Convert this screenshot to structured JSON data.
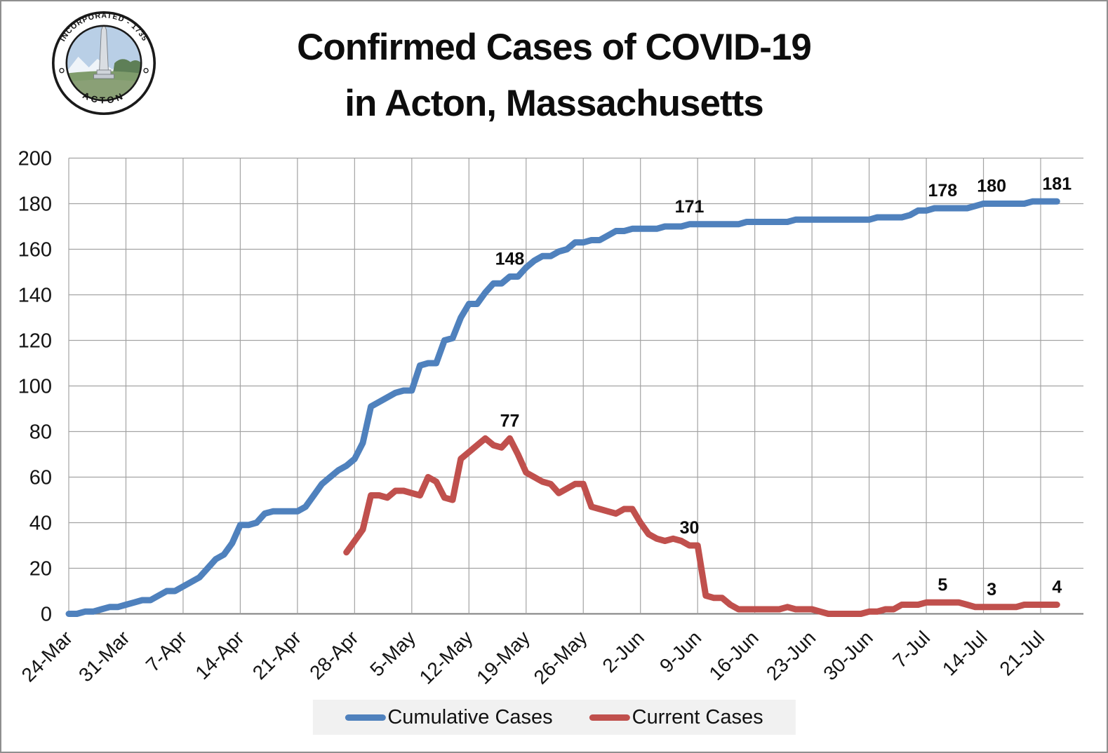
{
  "page": {
    "title_line1": "Confirmed Cases of COVID-19",
    "title_line2": "in Acton, Massachusetts"
  },
  "seal": {
    "top_text": "INCORPORATED - 1735",
    "bottom_text": "ACTON"
  },
  "legend": {
    "items": [
      {
        "label": "Cumulative Cases",
        "color": "#4F81BD"
      },
      {
        "label": "Current Cases",
        "color": "#C0504D"
      }
    ]
  },
  "chart_data": {
    "type": "line",
    "title": "Confirmed Cases of COVID-19 in Acton, Massachusetts",
    "xlabel": "",
    "ylabel": "",
    "ylim": [
      0,
      200
    ],
    "y_ticks": [
      0,
      20,
      40,
      60,
      80,
      100,
      120,
      140,
      160,
      180,
      200
    ],
    "x_tick_labels": [
      "24-Mar",
      "31-Mar",
      "7-Apr",
      "14-Apr",
      "21-Apr",
      "28-Apr",
      "5-May",
      "12-May",
      "19-May",
      "26-May",
      "2-Jun",
      "9-Jun",
      "16-Jun",
      "23-Jun",
      "30-Jun",
      "7-Jul",
      "14-Jul",
      "21-Jul"
    ],
    "x_tick_interval_days": 7,
    "grid": true,
    "legend_position": "bottom",
    "series": [
      {
        "name": "Cumulative Cases",
        "color": "#4F81BD",
        "start_day_offset": 0,
        "values": [
          0,
          0,
          1,
          1,
          2,
          3,
          3,
          4,
          5,
          6,
          6,
          8,
          10,
          10,
          12,
          14,
          16,
          20,
          24,
          26,
          31,
          39,
          39,
          40,
          44,
          45,
          45,
          45,
          45,
          47,
          52,
          57,
          60,
          63,
          65,
          68,
          75,
          91,
          93,
          95,
          97,
          98,
          98,
          109,
          110,
          110,
          120,
          121,
          130,
          136,
          136,
          141,
          145,
          145,
          148,
          148,
          152,
          155,
          157,
          157,
          159,
          160,
          163,
          163,
          164,
          164,
          166,
          168,
          168,
          169,
          169,
          169,
          169,
          170,
          170,
          170,
          171,
          171,
          171,
          171,
          171,
          171,
          171,
          172,
          172,
          172,
          172,
          172,
          172,
          173,
          173,
          173,
          173,
          173,
          173,
          173,
          173,
          173,
          173,
          174,
          174,
          174,
          174,
          175,
          177,
          177,
          178,
          178,
          178,
          178,
          178,
          179,
          180,
          180,
          180,
          180,
          180,
          180,
          181,
          181,
          181,
          181
        ]
      },
      {
        "name": "Current Cases",
        "color": "#C0504D",
        "start_day_offset": 34,
        "values": [
          27,
          32,
          37,
          52,
          52,
          51,
          54,
          54,
          53,
          52,
          60,
          58,
          51,
          50,
          68,
          71,
          74,
          77,
          74,
          73,
          77,
          70,
          62,
          60,
          58,
          57,
          53,
          55,
          57,
          57,
          47,
          46,
          45,
          44,
          46,
          46,
          40,
          35,
          33,
          32,
          33,
          32,
          30,
          30,
          8,
          7,
          7,
          4,
          2,
          2,
          2,
          2,
          2,
          2,
          3,
          2,
          2,
          2,
          1,
          0,
          0,
          0,
          0,
          0,
          1,
          1,
          2,
          2,
          4,
          4,
          4,
          5,
          5,
          5,
          5,
          5,
          4,
          3,
          3,
          3,
          3,
          3,
          3,
          4,
          4,
          4,
          4,
          4
        ]
      }
    ],
    "annotations": [
      {
        "series": "Cumulative Cases",
        "day_offset": 54,
        "value": 148,
        "label": "148"
      },
      {
        "series": "Cumulative Cases",
        "day_offset": 76,
        "value": 171,
        "label": "171"
      },
      {
        "series": "Cumulative Cases",
        "day_offset": 107,
        "value": 178,
        "label": "178"
      },
      {
        "series": "Cumulative Cases",
        "day_offset": 113,
        "value": 180,
        "label": "180"
      },
      {
        "series": "Cumulative Cases",
        "day_offset": 121,
        "value": 181,
        "label": "181"
      },
      {
        "series": "Current Cases",
        "day_offset": 54,
        "value": 77,
        "label": "77"
      },
      {
        "series": "Current Cases",
        "day_offset": 76,
        "value": 30,
        "label": "30"
      },
      {
        "series": "Current Cases",
        "day_offset": 107,
        "value": 5,
        "label": "5"
      },
      {
        "series": "Current Cases",
        "day_offset": 113,
        "value": 3,
        "label": "3"
      },
      {
        "series": "Current Cases",
        "day_offset": 121,
        "value": 4,
        "label": "4"
      }
    ]
  }
}
